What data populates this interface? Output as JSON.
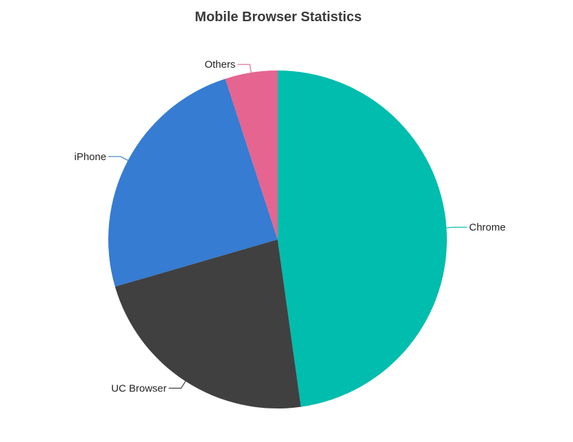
{
  "chart_data": {
    "type": "pie",
    "title": "Mobile Browser Statistics",
    "start_angle_deg": 0,
    "direction": "clockwise",
    "labels_outside": true,
    "slices": [
      {
        "label": "Chrome",
        "value": 47.8,
        "color": "#00BDAE"
      },
      {
        "label": "UC Browser",
        "value": 22.7,
        "color": "#404041"
      },
      {
        "label": "iPhone",
        "value": 24.5,
        "color": "#357CD2"
      },
      {
        "label": "Others",
        "value": 5.0,
        "color": "#E56590"
      }
    ]
  }
}
